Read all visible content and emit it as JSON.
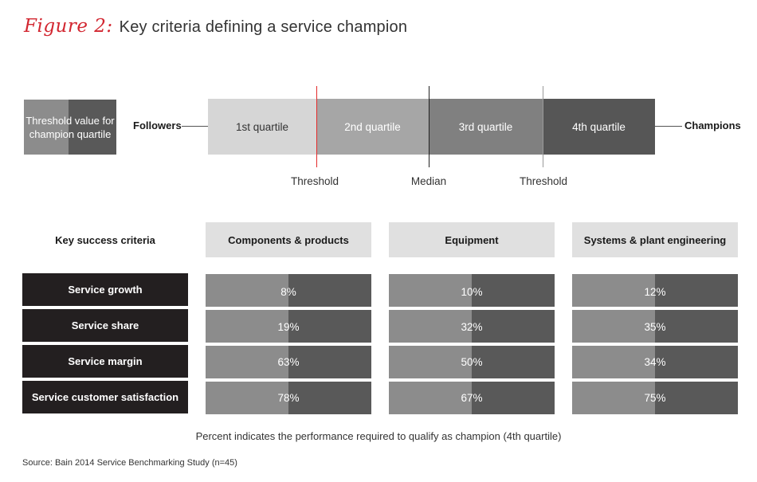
{
  "figure": {
    "label": "Figure 2:",
    "title": "Key criteria defining a service champion"
  },
  "legend": {
    "text": "Threshold value for champion quartile"
  },
  "scale": {
    "left_label": "Followers",
    "right_label": "Champions",
    "quartiles": [
      "1st quartile",
      "2nd quartile",
      "3rd quartile",
      "4th quartile"
    ],
    "markers": [
      "Threshold",
      "Median",
      "Threshold"
    ],
    "marker_colors": [
      "#e32b2b",
      "#222222",
      "#9a9a9a"
    ]
  },
  "table": {
    "criteria_header": "Key success criteria",
    "columns": [
      "Components & products",
      "Equipment",
      "Systems & plant engineering"
    ],
    "rows": [
      {
        "label": "Service growth",
        "values": [
          "8%",
          "10%",
          "12%"
        ]
      },
      {
        "label": "Service share",
        "values": [
          "19%",
          "32%",
          "35%"
        ]
      },
      {
        "label": "Service margin",
        "values": [
          "63%",
          "50%",
          "34%"
        ]
      },
      {
        "label": "Service customer satisfaction",
        "values": [
          "78%",
          "67%",
          "75%"
        ]
      }
    ]
  },
  "note": "Percent indicates the performance required to qualify as champion (4th quartile)",
  "source": "Source: Bain 2014 Service Benchmarking Study (n=45)"
}
